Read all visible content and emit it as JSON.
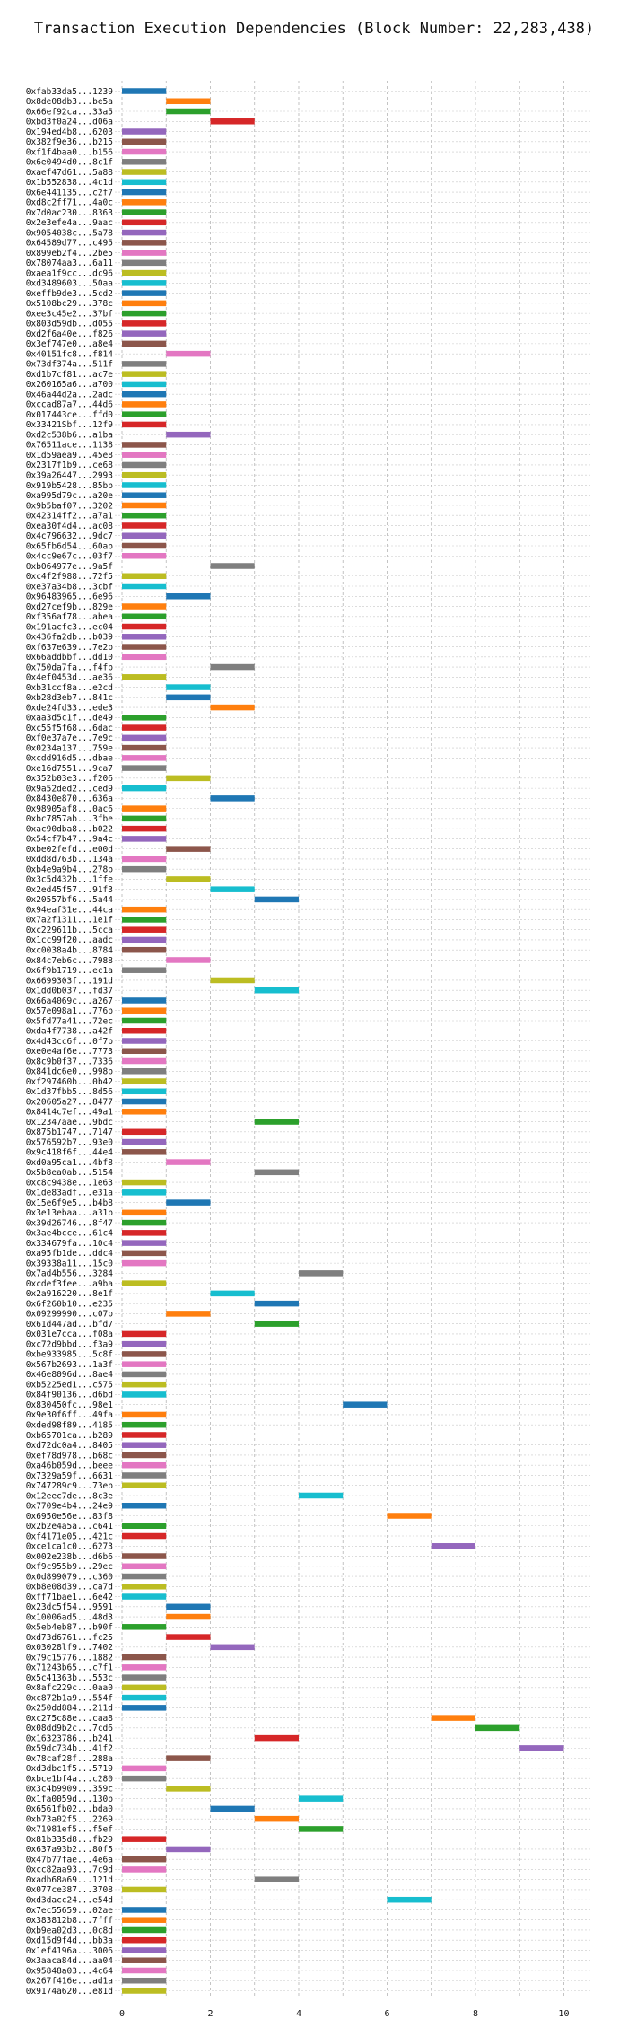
{
  "chart_data": {
    "type": "gantt",
    "title": "Transaction Execution Dependencies (Block Number: 22,283,438)",
    "xlabel": "",
    "ylabel": "",
    "xlim": [
      0,
      10.6
    ],
    "xticks": [
      0,
      2,
      4,
      6,
      8,
      10
    ],
    "grid": true,
    "palette": [
      "#1f77b4",
      "#ff7f0e",
      "#2ca02c",
      "#d62728",
      "#9467bd",
      "#8c564b",
      "#e377c2",
      "#7f7f7f",
      "#bcbd22",
      "#17becf"
    ],
    "bars": [
      {
        "label": "0xfab33da5...1239",
        "start": 0,
        "end": 1
      },
      {
        "label": "0x8de08db3...be5a",
        "start": 1,
        "end": 2
      },
      {
        "label": "0x66ef92ca...33a5",
        "start": 1,
        "end": 2
      },
      {
        "label": "0xbd3f0a24...d06a",
        "start": 2,
        "end": 3
      },
      {
        "label": "0x194ed4b8...6203",
        "start": 0,
        "end": 1
      },
      {
        "label": "0x382f9e36...b215",
        "start": 0,
        "end": 1
      },
      {
        "label": "0xf1f4baa0...b156",
        "start": 0,
        "end": 1
      },
      {
        "label": "0x6e0494d0...8c1f",
        "start": 0,
        "end": 1
      },
      {
        "label": "0xaef47d61...5a88",
        "start": 0,
        "end": 1
      },
      {
        "label": "0x1b552838...4c1d",
        "start": 0,
        "end": 1
      },
      {
        "label": "0x6e441135...c2f7",
        "start": 0,
        "end": 1
      },
      {
        "label": "0xd8c2ff71...4a0c",
        "start": 0,
        "end": 1
      },
      {
        "label": "0x7d0ac230...8363",
        "start": 0,
        "end": 1
      },
      {
        "label": "0x2e3efe4a...9aac",
        "start": 0,
        "end": 1
      },
      {
        "label": "0x9054038c...5a78",
        "start": 0,
        "end": 1
      },
      {
        "label": "0x64589d77...c495",
        "start": 0,
        "end": 1
      },
      {
        "label": "0x899eb2f4...2be5",
        "start": 0,
        "end": 1
      },
      {
        "label": "0x78074aa3...6a11",
        "start": 0,
        "end": 1
      },
      {
        "label": "0xaea1f9cc...dc96",
        "start": 0,
        "end": 1
      },
      {
        "label": "0xd3489603...50aa",
        "start": 0,
        "end": 1
      },
      {
        "label": "0xeffb9de3...5cd2",
        "start": 0,
        "end": 1
      },
      {
        "label": "0x5108bc29...378c",
        "start": 0,
        "end": 1
      },
      {
        "label": "0xee3c45e2...37bf",
        "start": 0,
        "end": 1
      },
      {
        "label": "0x803d59db...d055",
        "start": 0,
        "end": 1
      },
      {
        "label": "0xd2f6a40e...f826",
        "start": 0,
        "end": 1
      },
      {
        "label": "0x3ef747e0...a8e4",
        "start": 0,
        "end": 1
      },
      {
        "label": "0x40151fc8...f814",
        "start": 1,
        "end": 2
      },
      {
        "label": "0x73df374a...511f",
        "start": 0,
        "end": 1
      },
      {
        "label": "0xd1b7cf81...ac7e",
        "start": 0,
        "end": 1
      },
      {
        "label": "0x260165a6...a700",
        "start": 0,
        "end": 1
      },
      {
        "label": "0x46a44d2a...2adc",
        "start": 0,
        "end": 1
      },
      {
        "label": "0xccad87a7...44d6",
        "start": 0,
        "end": 1
      },
      {
        "label": "0x017443ce...ffd0",
        "start": 0,
        "end": 1
      },
      {
        "label": "0x33421Sbf...12f9",
        "start": 0,
        "end": 1
      },
      {
        "label": "0xd2c538b6...a1ba",
        "start": 1,
        "end": 2
      },
      {
        "label": "0x76511ace...1138",
        "start": 0,
        "end": 1
      },
      {
        "label": "0x1d59aea9...45e8",
        "start": 0,
        "end": 1
      },
      {
        "label": "0x2317f1b9...ce68",
        "start": 0,
        "end": 1
      },
      {
        "label": "0x39a26447...2993",
        "start": 0,
        "end": 1
      },
      {
        "label": "0x919b5428...85bb",
        "start": 0,
        "end": 1
      },
      {
        "label": "0xa995d79c...a20e",
        "start": 0,
        "end": 1
      },
      {
        "label": "0x9b5baf07...3202",
        "start": 0,
        "end": 1
      },
      {
        "label": "0x42314ff2...a7a1",
        "start": 0,
        "end": 1
      },
      {
        "label": "0xea30f4d4...ac08",
        "start": 0,
        "end": 1
      },
      {
        "label": "0x4c796632...9dc7",
        "start": 0,
        "end": 1
      },
      {
        "label": "0x65fb6d54...60ab",
        "start": 0,
        "end": 1
      },
      {
        "label": "0x4cc9e67c...03f7",
        "start": 0,
        "end": 1
      },
      {
        "label": "0xb064977e...9a5f",
        "start": 2,
        "end": 3
      },
      {
        "label": "0xc4f2f988...72f5",
        "start": 0,
        "end": 1
      },
      {
        "label": "0xe37a34b8...3cbf",
        "start": 0,
        "end": 1
      },
      {
        "label": "0x96483965...6e96",
        "start": 1,
        "end": 2
      },
      {
        "label": "0xd27cef9b...829e",
        "start": 0,
        "end": 1
      },
      {
        "label": "0xf356af78...abea",
        "start": 0,
        "end": 1
      },
      {
        "label": "0x191acfc3...ec04",
        "start": 0,
        "end": 1
      },
      {
        "label": "0x436fa2db...b039",
        "start": 0,
        "end": 1
      },
      {
        "label": "0xf637e639...7e2b",
        "start": 0,
        "end": 1
      },
      {
        "label": "0x66addbbf...dd10",
        "start": 0,
        "end": 1
      },
      {
        "label": "0x750da7fa...f4fb",
        "start": 2,
        "end": 3
      },
      {
        "label": "0x4ef0453d...ae36",
        "start": 0,
        "end": 1
      },
      {
        "label": "0xb31ccf8a...e2cd",
        "start": 1,
        "end": 2
      },
      {
        "label": "0xb28d3eb7...841c",
        "start": 1,
        "end": 2
      },
      {
        "label": "0xde24fd33...ede3",
        "start": 2,
        "end": 3
      },
      {
        "label": "0xaa3d5c1f...de49",
        "start": 0,
        "end": 1
      },
      {
        "label": "0xc55f5f68...6dac",
        "start": 0,
        "end": 1
      },
      {
        "label": "0xf0e37a7e...7e9c",
        "start": 0,
        "end": 1
      },
      {
        "label": "0x0234a137...759e",
        "start": 0,
        "end": 1
      },
      {
        "label": "0xcdd916d5...dbae",
        "start": 0,
        "end": 1
      },
      {
        "label": "0xe16d7551...9ca7",
        "start": 0,
        "end": 1
      },
      {
        "label": "0x352b03e3...f206",
        "start": 1,
        "end": 2
      },
      {
        "label": "0x9a52ded2...ced9",
        "start": 0,
        "end": 1
      },
      {
        "label": "0x8430e870...636a",
        "start": 2,
        "end": 3
      },
      {
        "label": "0x98905af8...0ac6",
        "start": 0,
        "end": 1
      },
      {
        "label": "0xbc7857ab...3fbe",
        "start": 0,
        "end": 1
      },
      {
        "label": "0xac90dba8...b022",
        "start": 0,
        "end": 1
      },
      {
        "label": "0x54cf7b47...9a4c",
        "start": 0,
        "end": 1
      },
      {
        "label": "0xbe02fefd...e00d",
        "start": 1,
        "end": 2
      },
      {
        "label": "0xdd8d763b...134a",
        "start": 0,
        "end": 1
      },
      {
        "label": "0xb4e9a9b4...278b",
        "start": 0,
        "end": 1
      },
      {
        "label": "0x3c5d432b...1ffe",
        "start": 1,
        "end": 2
      },
      {
        "label": "0x2ed45f57...91f3",
        "start": 2,
        "end": 3
      },
      {
        "label": "0x20557bf6...5a44",
        "start": 3,
        "end": 4
      },
      {
        "label": "0x94eaf31e...44ca",
        "start": 0,
        "end": 1
      },
      {
        "label": "0x7a2f1311...1e1f",
        "start": 0,
        "end": 1
      },
      {
        "label": "0xc229611b...5cca",
        "start": 0,
        "end": 1
      },
      {
        "label": "0x1cc99f20...aadc",
        "start": 0,
        "end": 1
      },
      {
        "label": "0xc0038a4b...8784",
        "start": 0,
        "end": 1
      },
      {
        "label": "0x84c7eb6c...7988",
        "start": 1,
        "end": 2
      },
      {
        "label": "0x6f9b1719...ec1a",
        "start": 0,
        "end": 1
      },
      {
        "label": "0x6699303f...191d",
        "start": 2,
        "end": 3
      },
      {
        "label": "0x1dd0b037...fd37",
        "start": 3,
        "end": 4
      },
      {
        "label": "0x66a4069c...a267",
        "start": 0,
        "end": 1
      },
      {
        "label": "0x57e098a1...776b",
        "start": 0,
        "end": 1
      },
      {
        "label": "0x5fd77a41...72ec",
        "start": 0,
        "end": 1
      },
      {
        "label": "0xda4f7738...a42f",
        "start": 0,
        "end": 1
      },
      {
        "label": "0x4d43cc6f...0f7b",
        "start": 0,
        "end": 1
      },
      {
        "label": "0xe0e4af6e...7773",
        "start": 0,
        "end": 1
      },
      {
        "label": "0x8c9b0f37...7336",
        "start": 0,
        "end": 1
      },
      {
        "label": "0x841dc6e0...998b",
        "start": 0,
        "end": 1
      },
      {
        "label": "0xf297460b...0b42",
        "start": 0,
        "end": 1
      },
      {
        "label": "0x1d37fbb5...8d56",
        "start": 0,
        "end": 1
      },
      {
        "label": "0x20605a27...8477",
        "start": 0,
        "end": 1
      },
      {
        "label": "0x8414c7ef...49a1",
        "start": 0,
        "end": 1
      },
      {
        "label": "0x12347aae...9bdc",
        "start": 3,
        "end": 4
      },
      {
        "label": "0x875b1747...7147",
        "start": 0,
        "end": 1
      },
      {
        "label": "0x576592b7...93e0",
        "start": 0,
        "end": 1
      },
      {
        "label": "0x9c418f6f...44e4",
        "start": 0,
        "end": 1
      },
      {
        "label": "0xd0a95ca1...4bf8",
        "start": 1,
        "end": 2
      },
      {
        "label": "0x5b8ea0ab...5154",
        "start": 3,
        "end": 4
      },
      {
        "label": "0xc8c9438e...1e63",
        "start": 0,
        "end": 1
      },
      {
        "label": "0x1de83adf...e31a",
        "start": 0,
        "end": 1
      },
      {
        "label": "0x15e6f9e5...b4b8",
        "start": 1,
        "end": 2
      },
      {
        "label": "0x3e13ebaa...a31b",
        "start": 0,
        "end": 1
      },
      {
        "label": "0x39d26746...8f47",
        "start": 0,
        "end": 1
      },
      {
        "label": "0x3ae4bcce...61c4",
        "start": 0,
        "end": 1
      },
      {
        "label": "0x334679fa...10c4",
        "start": 0,
        "end": 1
      },
      {
        "label": "0xa95fb1de...ddc4",
        "start": 0,
        "end": 1
      },
      {
        "label": "0x39338a11...15c0",
        "start": 0,
        "end": 1
      },
      {
        "label": "0x7ad4b556...3284",
        "start": 4,
        "end": 5
      },
      {
        "label": "0xcdef3fee...a9ba",
        "start": 0,
        "end": 1
      },
      {
        "label": "0x2a916220...8e1f",
        "start": 2,
        "end": 3
      },
      {
        "label": "0x6f260b10...e235",
        "start": 3,
        "end": 4
      },
      {
        "label": "0x09299990...c07b",
        "start": 1,
        "end": 2
      },
      {
        "label": "0x61d447ad...bfd7",
        "start": 3,
        "end": 4
      },
      {
        "label": "0x031e7cca...f08a",
        "start": 0,
        "end": 1
      },
      {
        "label": "0xc72d9bbd...f3a9",
        "start": 0,
        "end": 1
      },
      {
        "label": "0xbe933985...5c8f",
        "start": 0,
        "end": 1
      },
      {
        "label": "0x567b2693...1a3f",
        "start": 0,
        "end": 1
      },
      {
        "label": "0x46e8096d...8ae4",
        "start": 0,
        "end": 1
      },
      {
        "label": "0xb5225ed1...c575",
        "start": 0,
        "end": 1
      },
      {
        "label": "0x84f90136...d6bd",
        "start": 0,
        "end": 1
      },
      {
        "label": "0x830450fc...98e1",
        "start": 5,
        "end": 6
      },
      {
        "label": "0x9e30f6ff...49fa",
        "start": 0,
        "end": 1
      },
      {
        "label": "0xded98f89...4185",
        "start": 0,
        "end": 1
      },
      {
        "label": "0xb65701ca...b289",
        "start": 0,
        "end": 1
      },
      {
        "label": "0xd72dc0a4...8405",
        "start": 0,
        "end": 1
      },
      {
        "label": "0xef78d978...b68c",
        "start": 0,
        "end": 1
      },
      {
        "label": "0xa46b059d...beee",
        "start": 0,
        "end": 1
      },
      {
        "label": "0x7329a59f...6631",
        "start": 0,
        "end": 1
      },
      {
        "label": "0x747289c9...73eb",
        "start": 0,
        "end": 1
      },
      {
        "label": "0x12eec7de...8c3e",
        "start": 4,
        "end": 5
      },
      {
        "label": "0x7709e4b4...24e9",
        "start": 0,
        "end": 1
      },
      {
        "label": "0x6950e56e...83f8",
        "start": 6,
        "end": 7
      },
      {
        "label": "0x2b2e4a5a...c641",
        "start": 0,
        "end": 1
      },
      {
        "label": "0xf4171e05...421c",
        "start": 0,
        "end": 1
      },
      {
        "label": "0xce1ca1c0...6273",
        "start": 7,
        "end": 8
      },
      {
        "label": "0x002e238b...d6b6",
        "start": 0,
        "end": 1
      },
      {
        "label": "0xf9c955b9...29ec",
        "start": 0,
        "end": 1
      },
      {
        "label": "0x0d899079...c360",
        "start": 0,
        "end": 1
      },
      {
        "label": "0xb8e08d39...ca7d",
        "start": 0,
        "end": 1
      },
      {
        "label": "0xff71bae1...6e42",
        "start": 0,
        "end": 1
      },
      {
        "label": "0x23dc5f54...9591",
        "start": 1,
        "end": 2
      },
      {
        "label": "0x10006ad5...48d3",
        "start": 1,
        "end": 2
      },
      {
        "label": "0x5eb4eb87...b90f",
        "start": 0,
        "end": 1
      },
      {
        "label": "0xd73d6761...fc25",
        "start": 1,
        "end": 2
      },
      {
        "label": "0x03028lf9...7402",
        "start": 2,
        "end": 3
      },
      {
        "label": "0x79c15776...1882",
        "start": 0,
        "end": 1
      },
      {
        "label": "0x71243b65...c7f1",
        "start": 0,
        "end": 1
      },
      {
        "label": "0x5c41363b...553c",
        "start": 0,
        "end": 1
      },
      {
        "label": "0x8afc229c...0aa0",
        "start": 0,
        "end": 1
      },
      {
        "label": "0xc872b1a9...554f",
        "start": 0,
        "end": 1
      },
      {
        "label": "0x250dd884...211d",
        "start": 0,
        "end": 1
      },
      {
        "label": "0xc275c88e...caa8",
        "start": 7,
        "end": 8
      },
      {
        "label": "0x08dd9b2c...7cd6",
        "start": 8,
        "end": 9
      },
      {
        "label": "0x16323786...b241",
        "start": 3,
        "end": 4
      },
      {
        "label": "0x59dc734b...41f2",
        "start": 9,
        "end": 10
      },
      {
        "label": "0x78caf28f...288a",
        "start": 1,
        "end": 2
      },
      {
        "label": "0xd3dbc1f5...5719",
        "start": 0,
        "end": 1
      },
      {
        "label": "0xbce1bf4a...c280",
        "start": 0,
        "end": 1
      },
      {
        "label": "0x3c4b9909...359c",
        "start": 1,
        "end": 2
      },
      {
        "label": "0x1fa0059d...130b",
        "start": 4,
        "end": 5
      },
      {
        "label": "0x6561fb02...bda0",
        "start": 2,
        "end": 3
      },
      {
        "label": "0xb73a02f5...2269",
        "start": 3,
        "end": 4
      },
      {
        "label": "0x71981ef5...f5ef",
        "start": 4,
        "end": 5
      },
      {
        "label": "0x81b335d8...fb29",
        "start": 0,
        "end": 1
      },
      {
        "label": "0x637a93b2...80f5",
        "start": 1,
        "end": 2
      },
      {
        "label": "0x47b77fae...4e6a",
        "start": 0,
        "end": 1
      },
      {
        "label": "0xcc82aa93...7c9d",
        "start": 0,
        "end": 1
      },
      {
        "label": "0xadb68a69...121d",
        "start": 3,
        "end": 4
      },
      {
        "label": "0x077ce387...3708",
        "start": 0,
        "end": 1
      },
      {
        "label": "0xd3dacc24...e54d",
        "start": 6,
        "end": 7
      },
      {
        "label": "0x7ec55659...02ae",
        "start": 0,
        "end": 1
      },
      {
        "label": "0x383812b8...7fff",
        "start": 0,
        "end": 1
      },
      {
        "label": "0xb9ea02d3...0c8d",
        "start": 0,
        "end": 1
      },
      {
        "label": "0xd15d9f4d...bb3a",
        "start": 0,
        "end": 1
      },
      {
        "label": "0x1ef4196a...3006",
        "start": 0,
        "end": 1
      },
      {
        "label": "0x3aaca84d...aa04",
        "start": 0,
        "end": 1
      },
      {
        "label": "0x95848a03...4c64",
        "start": 0,
        "end": 1
      },
      {
        "label": "0x267f416e...ad1a",
        "start": 0,
        "end": 1
      },
      {
        "label": "0x9174a620...e81d",
        "start": 0,
        "end": 1
      }
    ]
  }
}
